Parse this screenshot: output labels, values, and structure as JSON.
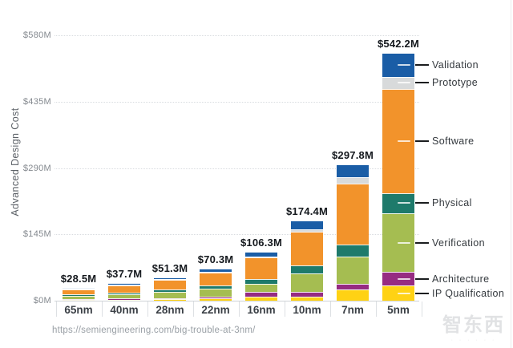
{
  "source_url": "https://semiengineering.com/big-trouble-at-3nm/",
  "watermark": {
    "text": "智东西",
    "subtext": "· · · · · ·"
  },
  "chart_data": {
    "type": "bar",
    "stacked": true,
    "title": "",
    "xlabel": "",
    "ylabel": "Advanced Design Cost",
    "ylim": [
      0,
      580
    ],
    "yticks": [
      0,
      145,
      290,
      435,
      580
    ],
    "ytick_labels": [
      "$0M",
      "$145M",
      "$290M",
      "$435M",
      "$580M"
    ],
    "grid": "horizontal-dotted",
    "legend_position": "right-of-last-bar",
    "categories": [
      "65nm",
      "40nm",
      "28nm",
      "22nm",
      "16nm",
      "10nm",
      "7nm",
      "5nm"
    ],
    "totals": [
      28.5,
      37.7,
      51.3,
      70.3,
      106.3,
      174.4,
      297.8,
      542.2
    ],
    "total_labels": [
      "$28.5M",
      "$37.7M",
      "$51.3M",
      "$70.3M",
      "$106.3M",
      "$174.4M",
      "$297.8M",
      "$542.2M"
    ],
    "series": [
      {
        "name": "IP Qualification",
        "color": "#FFD214",
        "values": [
          2.0,
          2.6,
          3.4,
          4.5,
          9.2,
          9.2,
          25.0,
          33.0
        ]
      },
      {
        "name": "Architecture",
        "color": "#962B82",
        "values": [
          1.5,
          2.0,
          2.7,
          3.7,
          9.2,
          9.2,
          12.5,
          30.0
        ]
      },
      {
        "name": "Verification",
        "color": "#A5BD51",
        "values": [
          7.0,
          9.4,
          12.7,
          17.5,
          18.4,
          40.4,
          59.0,
          128.0
        ]
      },
      {
        "name": "Physical",
        "color": "#1E7A6B",
        "values": [
          3.0,
          4.0,
          5.5,
          7.5,
          11.0,
          18.4,
          26.5,
          44.0
        ]
      },
      {
        "name": "Software",
        "color": "#F2932B",
        "values": [
          11.5,
          15.0,
          20.6,
          28.4,
          46.6,
          73.5,
          133.0,
          228.0
        ]
      },
      {
        "name": "Prototype",
        "color": "#D8DADB",
        "values": [
          0.9,
          1.2,
          1.6,
          2.1,
          2.7,
          5.3,
          14.0,
          26.0
        ]
      },
      {
        "name": "Validation",
        "color": "#1A5DA6",
        "values": [
          2.6,
          3.5,
          4.8,
          6.6,
          9.2,
          18.4,
          27.8,
          53.2
        ]
      }
    ],
    "legend_order": [
      "Validation",
      "Prototype",
      "Software",
      "Physical",
      "Verification",
      "Architecture",
      "IP Qualification"
    ]
  }
}
